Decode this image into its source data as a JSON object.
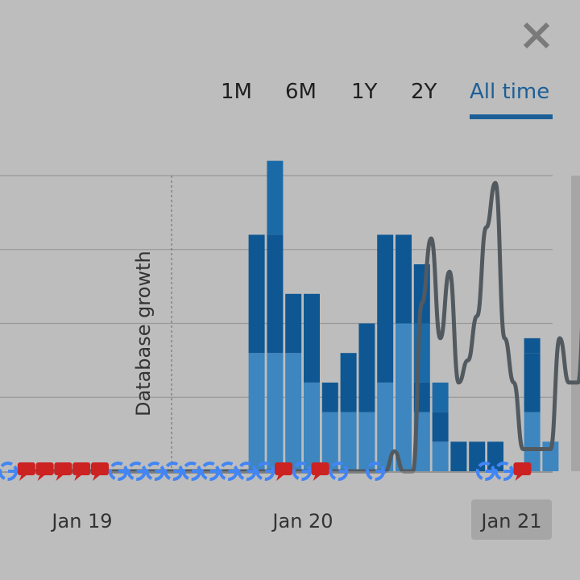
{
  "close_icon": "close-icon",
  "ranges": [
    {
      "label": "1M"
    },
    {
      "label": "6M"
    },
    {
      "label": "1Y"
    },
    {
      "label": "2Y"
    },
    {
      "label": "All time"
    }
  ],
  "active_range": "All time",
  "colors": {
    "accent": "#1c5f97",
    "bar_dark": "#0f5793",
    "bar_mid": "#1b6aa8",
    "bar_light": "#3d86bf",
    "line": "#525a60",
    "background": "#bdbdbd",
    "gridline": "#999999",
    "google_marker": "#4285f4",
    "comment_marker": "#cc2222"
  },
  "chart_data": {
    "type": "bar",
    "annotation": "Database growth",
    "x_ticks": [
      "Jan 19",
      "Jan 20",
      "Jan 21"
    ],
    "highlighted_tick": "Jan 21",
    "ylim": [
      0,
      100
    ],
    "series": [
      {
        "values": [
          0,
          0,
          0,
          0,
          0,
          0,
          0,
          0,
          0,
          0,
          0,
          0,
          0,
          0,
          0,
          0,
          0,
          0,
          0,
          0,
          0,
          0,
          40,
          40,
          40,
          30,
          20,
          20,
          20,
          30,
          50,
          20,
          10,
          0,
          0,
          0,
          0,
          20,
          10,
          10,
          40
        ]
      },
      {
        "values": [
          0,
          0,
          0,
          0,
          0,
          0,
          0,
          0,
          0,
          0,
          0,
          0,
          0,
          0,
          0,
          0,
          0,
          0,
          0,
          0,
          0,
          0,
          40,
          40,
          20,
          30,
          10,
          20,
          30,
          50,
          30,
          10,
          10,
          10,
          10,
          10,
          0,
          20,
          0,
          0,
          0
        ]
      },
      {
        "values": [
          0,
          0,
          0,
          0,
          0,
          0,
          0,
          0,
          0,
          0,
          0,
          0,
          0,
          0,
          0,
          0,
          0,
          0,
          0,
          0,
          0,
          0,
          0,
          25,
          0,
          0,
          0,
          0,
          0,
          0,
          0,
          20,
          10,
          0,
          0,
          0,
          0,
          0,
          0,
          0,
          0
        ]
      },
      {
        "values": [
          0,
          0,
          0,
          0,
          0,
          0,
          0,
          0,
          0,
          0,
          0,
          0,
          0,
          0,
          0,
          0,
          0,
          0,
          0,
          0,
          0,
          0,
          0,
          0,
          0,
          0,
          0,
          0,
          0,
          0,
          0,
          20,
          0,
          0,
          0,
          0,
          0,
          5,
          0,
          0,
          50
        ]
      }
    ],
    "line": [
      0,
      0,
      0,
      0,
      0,
      0,
      0,
      0,
      0,
      0,
      0,
      0,
      0,
      0,
      0,
      0,
      0,
      0,
      0,
      0,
      0,
      0,
      0,
      0,
      0,
      0,
      0,
      0,
      0,
      0,
      0,
      0,
      0,
      0,
      0,
      0,
      0,
      0,
      0,
      9,
      0,
      0,
      76,
      105,
      60,
      90,
      40,
      50,
      70,
      110,
      130,
      60,
      40,
      10,
      10,
      10,
      10,
      60,
      40,
      40,
      110
    ],
    "markers": [
      "G",
      "C",
      "C",
      "C",
      "C",
      "C",
      "G",
      "G",
      "G",
      "G",
      "G",
      "G",
      "G",
      "G",
      "G",
      "C",
      "G",
      "C",
      "G",
      "",
      "G",
      "",
      "",
      "",
      "",
      "",
      "G",
      "G",
      "C"
    ]
  }
}
